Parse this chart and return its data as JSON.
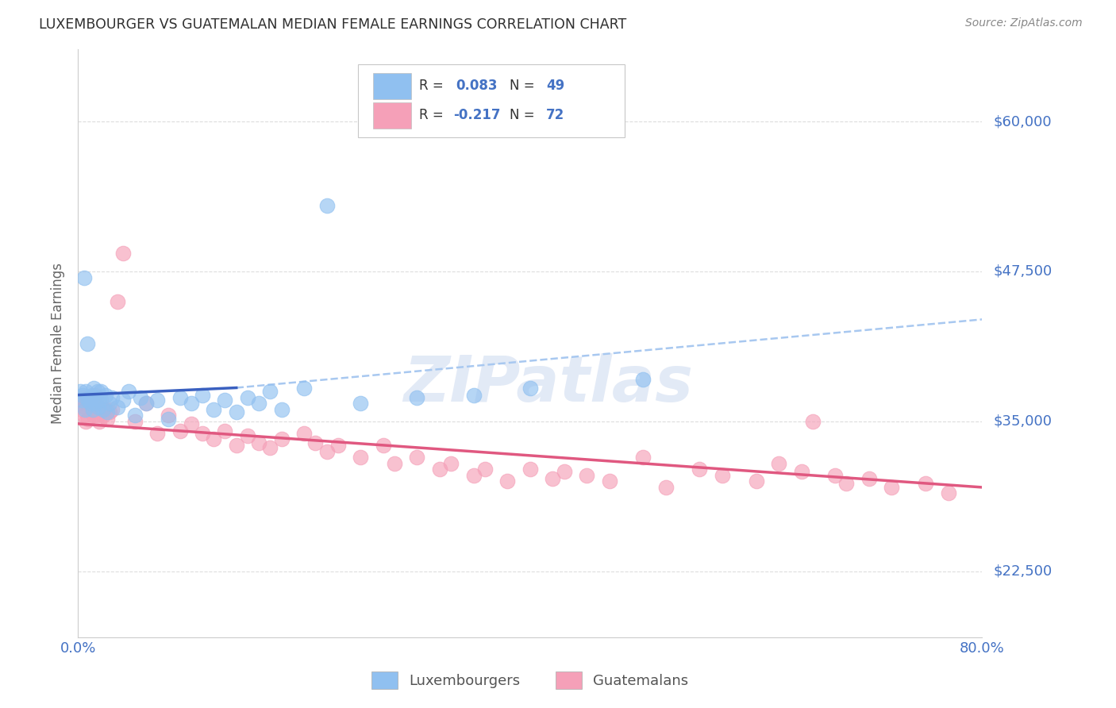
{
  "title": "LUXEMBOURGER VS GUATEMALAN MEDIAN FEMALE EARNINGS CORRELATION CHART",
  "source": "Source: ZipAtlas.com",
  "ylabel": "Median Female Earnings",
  "y_ticks": [
    22500,
    35000,
    47500,
    60000
  ],
  "y_tick_labels": [
    "$22,500",
    "$35,000",
    "$47,500",
    "$60,000"
  ],
  "x_min": 0.0,
  "x_max": 80.0,
  "y_min": 17000,
  "y_max": 66000,
  "blue_color": "#90C0F0",
  "pink_color": "#F5A0B8",
  "blue_line_color": "#3A60C0",
  "pink_line_color": "#E05880",
  "blue_dash_color": "#A8C8F0",
  "tick_label_color": "#4472C4",
  "axis_label_color": "#666666",
  "title_color": "#303030",
  "watermark": "ZIPatlas",
  "legend_label_blue": "Luxembourgers",
  "legend_label_pink": "Guatemalans",
  "blue_line_x0": 0.0,
  "blue_line_x1": 14.0,
  "blue_line_y0": 37200,
  "blue_line_y1": 37800,
  "blue_dash_x0": 14.0,
  "blue_dash_x1": 80.0,
  "blue_dash_y0": 37800,
  "blue_dash_y1": 43500,
  "pink_line_x0": 0.0,
  "pink_line_x1": 80.0,
  "pink_line_y0": 34800,
  "pink_line_y1": 29500,
  "blue_scatter_x": [
    0.2,
    0.3,
    0.4,
    0.5,
    0.6,
    0.7,
    0.8,
    0.9,
    1.0,
    1.1,
    1.2,
    1.3,
    1.4,
    1.5,
    1.6,
    1.7,
    1.8,
    1.9,
    2.0,
    2.2,
    2.4,
    2.6,
    2.8,
    3.0,
    3.5,
    4.0,
    4.5,
    5.0,
    5.5,
    6.0,
    7.0,
    8.0,
    9.0,
    10.0,
    11.0,
    12.0,
    13.0,
    14.0,
    15.0,
    16.0,
    17.0,
    18.0,
    20.0,
    22.0,
    25.0,
    30.0,
    35.0,
    40.0,
    50.0
  ],
  "blue_scatter_y": [
    37500,
    36800,
    37200,
    47000,
    36000,
    37500,
    41500,
    36800,
    37000,
    36500,
    37200,
    36000,
    37800,
    36500,
    37000,
    37500,
    36200,
    36800,
    37500,
    36000,
    37200,
    35800,
    36500,
    37000,
    36200,
    36800,
    37500,
    35500,
    37000,
    36500,
    36800,
    35200,
    37000,
    36500,
    37200,
    36000,
    36800,
    35800,
    37000,
    36500,
    37500,
    36000,
    37800,
    53000,
    36500,
    37000,
    37200,
    37800,
    38500
  ],
  "pink_scatter_x": [
    0.2,
    0.3,
    0.4,
    0.5,
    0.6,
    0.7,
    0.8,
    0.9,
    1.0,
    1.1,
    1.2,
    1.3,
    1.4,
    1.5,
    1.6,
    1.7,
    1.8,
    1.9,
    2.0,
    2.2,
    2.4,
    2.6,
    2.8,
    3.0,
    3.5,
    4.0,
    5.0,
    6.0,
    7.0,
    8.0,
    9.0,
    10.0,
    11.0,
    12.0,
    13.0,
    14.0,
    15.0,
    16.0,
    17.0,
    18.0,
    20.0,
    21.0,
    22.0,
    23.0,
    25.0,
    27.0,
    28.0,
    30.0,
    32.0,
    33.0,
    35.0,
    36.0,
    38.0,
    40.0,
    42.0,
    43.0,
    45.0,
    47.0,
    50.0,
    52.0,
    55.0,
    57.0,
    60.0,
    62.0,
    64.0,
    65.0,
    67.0,
    68.0,
    70.0,
    72.0,
    75.0,
    77.0
  ],
  "pink_scatter_y": [
    36500,
    36000,
    37000,
    35500,
    36200,
    35000,
    36800,
    35200,
    37000,
    36500,
    35800,
    36200,
    35500,
    37200,
    36000,
    35500,
    36200,
    35000,
    36800,
    35500,
    36000,
    35200,
    35800,
    36000,
    45000,
    49000,
    35000,
    36500,
    34000,
    35500,
    34200,
    34800,
    34000,
    33500,
    34200,
    33000,
    33800,
    33200,
    32800,
    33500,
    34000,
    33200,
    32500,
    33000,
    32000,
    33000,
    31500,
    32000,
    31000,
    31500,
    30500,
    31000,
    30000,
    31000,
    30200,
    30800,
    30500,
    30000,
    32000,
    29500,
    31000,
    30500,
    30000,
    31500,
    30800,
    35000,
    30500,
    29800,
    30200,
    29500,
    29800,
    29000
  ]
}
